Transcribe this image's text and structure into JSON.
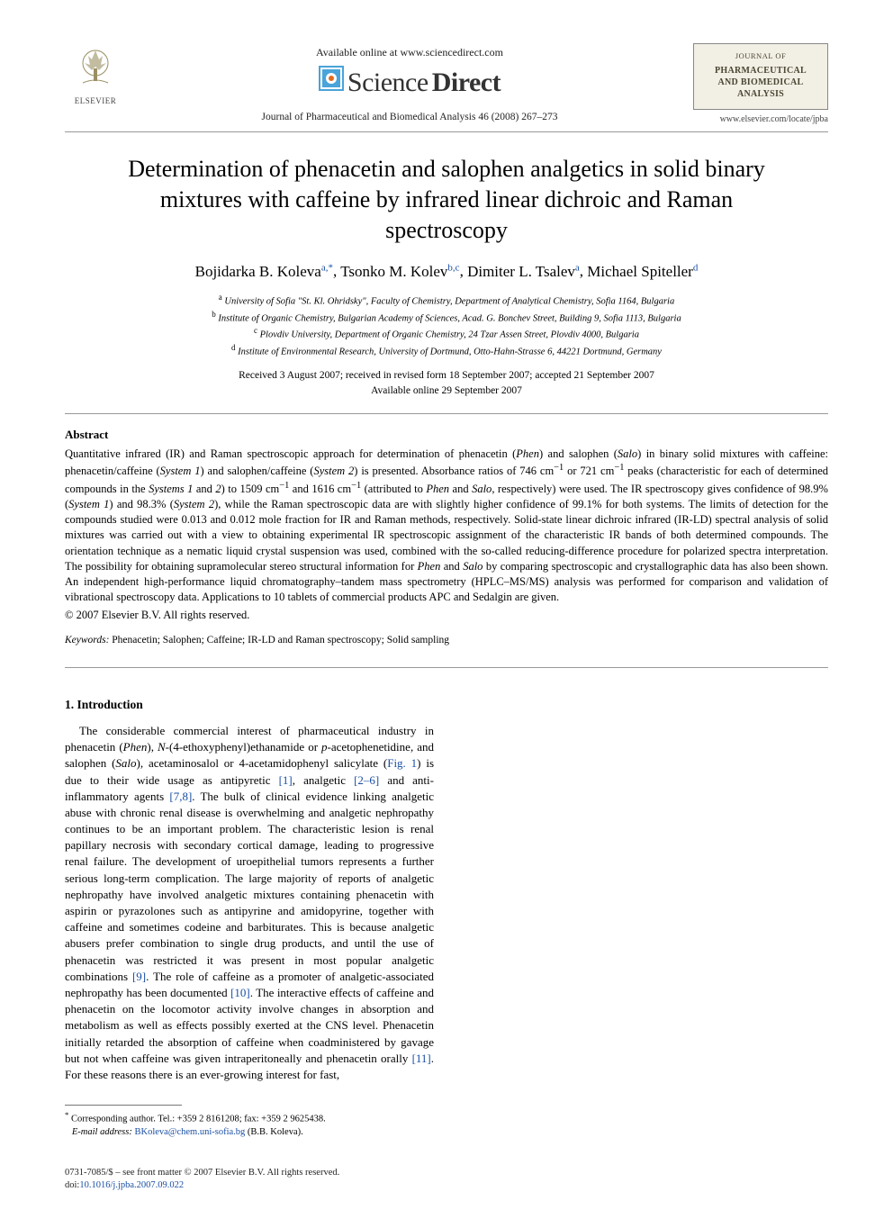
{
  "header": {
    "available_online": "Available online at www.sciencedirect.com",
    "sciencedirect": {
      "part1": "Science",
      "part2": "Direct"
    },
    "journal_ref": "Journal of Pharmaceutical and Biomedical Analysis 46 (2008) 267–273",
    "elsevier_label": "ELSEVIER",
    "journal_badge": {
      "top": "JOURNAL OF",
      "l1": "PHARMACEUTICAL",
      "l2": "AND BIOMEDICAL",
      "l3": "ANALYSIS"
    },
    "locate_url": "www.elsevier.com/locate/jpba"
  },
  "title": "Determination of phenacetin and salophen analgetics in solid binary mixtures with caffeine by infrared linear dichroic and Raman spectroscopy",
  "authors": [
    {
      "name": "Bojidarka B. Koleva",
      "sup": "a,*"
    },
    {
      "name": "Tsonko M. Kolev",
      "sup": "b,c"
    },
    {
      "name": "Dimiter L. Tsalev",
      "sup": "a"
    },
    {
      "name": "Michael Spiteller",
      "sup": "d"
    }
  ],
  "affiliations": [
    {
      "sup": "a",
      "text": "University of Sofia \"St. Kl. Ohridsky\", Faculty of Chemistry, Department of Analytical Chemistry, Sofia 1164, Bulgaria"
    },
    {
      "sup": "b",
      "text": "Institute of Organic Chemistry, Bulgarian Academy of Sciences, Acad. G. Bonchev Street, Building 9, Sofia 1113, Bulgaria"
    },
    {
      "sup": "c",
      "text": "Plovdiv University, Department of Organic Chemistry, 24 Tzar Assen Street, Plovdiv 4000, Bulgaria"
    },
    {
      "sup": "d",
      "text": "Institute of Environmental Research, University of Dortmund, Otto-Hahn-Strasse 6, 44221 Dortmund, Germany"
    }
  ],
  "dates": {
    "line1": "Received 3 August 2007; received in revised form 18 September 2007; accepted 21 September 2007",
    "line2": "Available online 29 September 2007"
  },
  "abstract": {
    "heading": "Abstract",
    "text_html": "Quantitative infrared (IR) and Raman spectroscopic approach for determination of phenacetin (<em>Phen</em>) and salophen (<em>Salo</em>) in binary solid mixtures with caffeine: phenacetin/caffeine (<em>System 1</em>) and salophen/caffeine (<em>System 2</em>) is presented. Absorbance ratios of 746 cm<sup>−1</sup> or 721 cm<sup>−1</sup> peaks (characteristic for each of determined compounds in the <em>Systems 1</em> and <em>2</em>) to 1509 cm<sup>−1</sup> and 1616 cm<sup>−1</sup> (attributed to <em>Phen</em> and <em>Salo</em>, respectively) were used. The IR spectroscopy gives confidence of 98.9% (<em>System 1</em>) and 98.3% (<em>System 2</em>), while the Raman spectroscopic data are with slightly higher confidence of 99.1% for both systems. The limits of detection for the compounds studied were 0.013 and 0.012 mole fraction for IR and Raman methods, respectively. Solid-state linear dichroic infrared (IR-LD) spectral analysis of solid mixtures was carried out with a view to obtaining experimental IR spectroscopic assignment of the characteristic IR bands of both determined compounds. The orientation technique as a nematic liquid crystal suspension was used, combined with the so-called reducing-difference procedure for polarized spectra interpretation. The possibility for obtaining supramolecular stereo structural information for <em>Phen</em> and <em>Salo</em> by comparing spectroscopic and crystallographic data has also been shown. An independent high-performance liquid chromatography–tandem mass spectrometry (HPLC–MS/MS) analysis was performed for comparison and validation of vibrational spectroscopy data. Applications to 10 tablets of commercial products APC and Sedalgin are given.",
    "copyright": "© 2007 Elsevier B.V. All rights reserved."
  },
  "keywords": {
    "label": "Keywords:",
    "text": " Phenacetin; Salophen; Caffeine; IR-LD and Raman spectroscopy; Solid sampling"
  },
  "section1": {
    "heading": "1.  Introduction",
    "body_html": "The considerable commercial interest of pharmaceutical industry in phenacetin (<em>Phen</em>), <em>N</em>-(4-ethoxyphenyl)ethanamide or <em>p</em>-acetophenetidine, and salophen (<em>Salo</em>), acetaminosalol or 4-acetamidophenyl salicylate (<a class=\"ref\" href=\"#\">Fig. 1</a>) is due to their wide usage as antipyretic <a class=\"ref\" href=\"#\">[1]</a>, analgetic <a class=\"ref\" href=\"#\">[2–6]</a> and anti-inflammatory agents <a class=\"ref\" href=\"#\">[7,8]</a>. The bulk of clinical evidence linking analgetic abuse with chronic renal disease is overwhelming and analgetic nephropathy continues to be an important problem. The characteristic lesion is renal papillary necrosis with secondary cortical damage, leading to progressive renal failure. The development of uroepithelial tumors represents a further serious long-term complication. The large majority of reports of analgetic nephropathy have involved analgetic mixtures containing phenacetin with aspirin or pyrazolones such as antipyrine and amidopyrine, together with caffeine and sometimes codeine and barbiturates. This is because analgetic abusers prefer combination to single drug products, and until the use of phenacetin was restricted it was present in most popular analgetic combinations <a class=\"ref\" href=\"#\">[9]</a>. The role of caffeine as a promoter of analgetic-associated nephropathy has been documented <a class=\"ref\" href=\"#\">[10]</a>. The interactive effects of caffeine and phenacetin on the locomotor activity involve changes in absorption and metabolism as well as effects possibly exerted at the CNS level. Phenacetin initially retarded the absorption of caffeine when coadministered by gavage but not when caffeine was given intraperitoneally and phenacetin orally <a class=\"ref\" href=\"#\">[11]</a>. For these reasons there is an ever-growing interest for fast,"
  },
  "footnote": {
    "star": "*",
    "corresponding": "Corresponding author. Tel.: +359 2 8161208; fax: +359 2 9625438.",
    "email_label": "E-mail address:",
    "email": "BKoleva@chem.uni-sofia.bg",
    "email_who": "(B.B. Koleva)."
  },
  "footer": {
    "issn_line": "0731-7085/$ – see front matter © 2007 Elsevier B.V. All rights reserved.",
    "doi_label": "doi:",
    "doi": "10.1016/j.jpba.2007.09.022"
  },
  "colors": {
    "link": "#1a4fa3",
    "badge_bg": "#f2efe4",
    "badge_text": "#4a4633",
    "rule": "#999999"
  }
}
